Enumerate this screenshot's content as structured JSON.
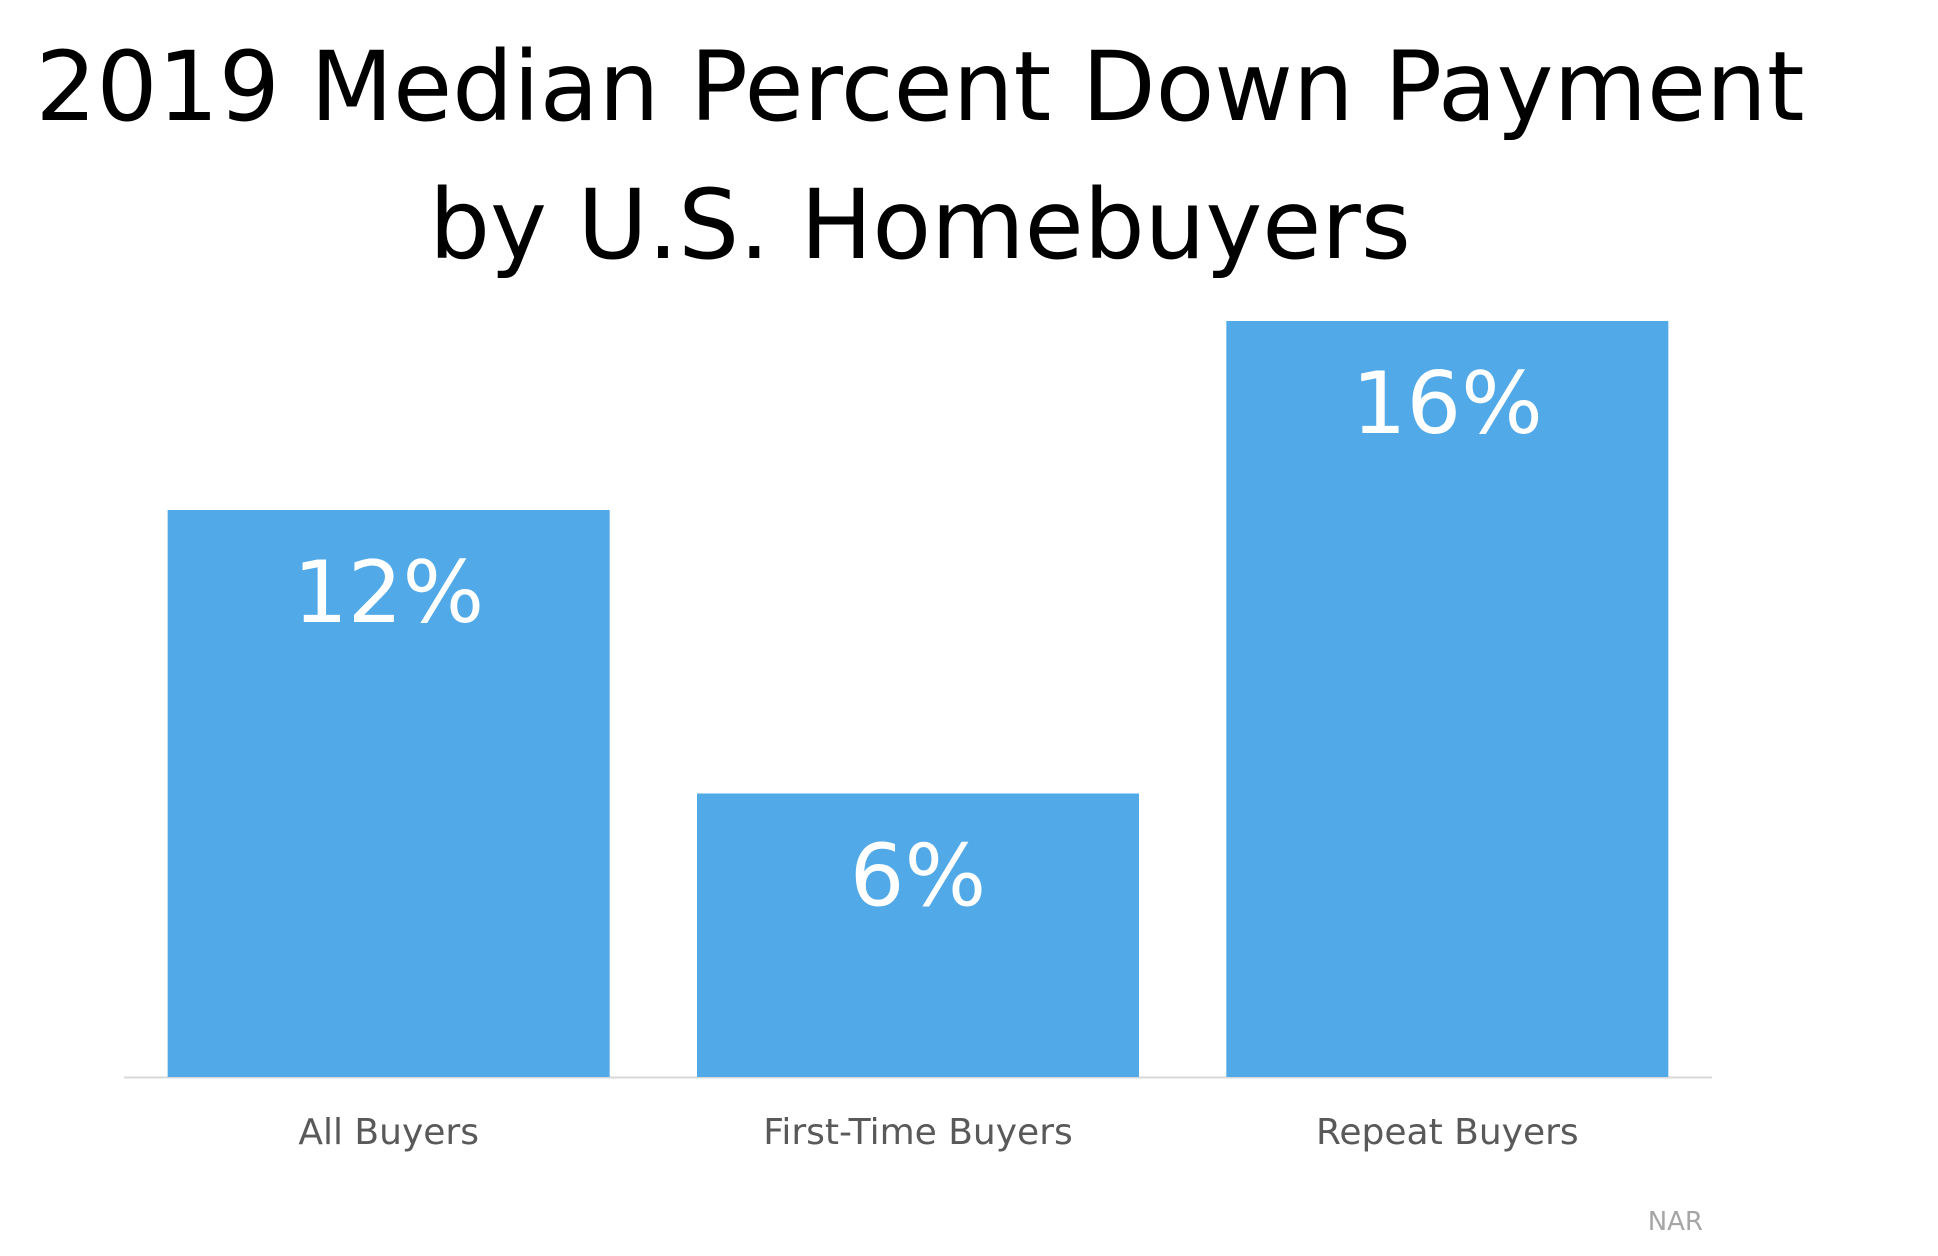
{
  "chart_data": {
    "type": "bar",
    "title": "2019 Median Percent Down Payment by U.S. Homebuyers",
    "title_lines": [
      "2019 Median Percent Down Payment",
      "by U.S. Homebuyers"
    ],
    "categories": [
      "All Buyers",
      "First-Time Buyers",
      "Repeat Buyers"
    ],
    "values": [
      12,
      6,
      16
    ],
    "data_labels": [
      "12%",
      "6%",
      "16%"
    ],
    "xlabel": "",
    "ylabel": "",
    "ylim": [
      0,
      16
    ],
    "grid": false,
    "legend": "none",
    "bar_color": "#51a9e8",
    "label_color": "#ffffff",
    "category_label_color": "#595959",
    "axis_color": "#d9d9d9"
  },
  "source": "NAR"
}
